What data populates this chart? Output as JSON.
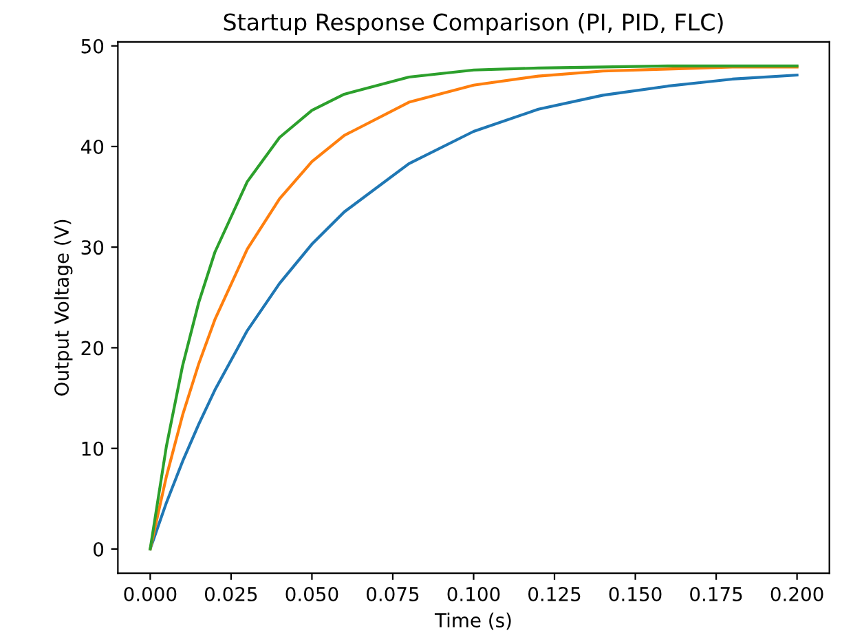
{
  "chart_data": {
    "type": "line",
    "title": "Startup Response Comparison (PI, PID, FLC)",
    "xlabel": "Time (s)",
    "ylabel": "Output Voltage (V)",
    "x": [
      0,
      0.005,
      0.01,
      0.015,
      0.02,
      0.03,
      0.04,
      0.05,
      0.06,
      0.08,
      0.1,
      0.12,
      0.14,
      0.16,
      0.18,
      0.2
    ],
    "series": [
      {
        "color": "#1f77b4",
        "values": [
          0,
          4.6,
          8.7,
          12.4,
          15.8,
          21.7,
          26.4,
          30.3,
          33.5,
          38.3,
          41.5,
          43.7,
          45.1,
          46.0,
          46.7,
          47.1
        ]
      },
      {
        "color": "#ff7f0e",
        "values": [
          0,
          7.2,
          13.3,
          18.4,
          22.8,
          29.8,
          34.8,
          38.5,
          41.1,
          44.4,
          46.1,
          47.0,
          47.5,
          47.7,
          47.9,
          47.9
        ]
      },
      {
        "color": "#2ca02c",
        "values": [
          0,
          10.2,
          18.2,
          24.5,
          29.5,
          36.5,
          40.9,
          43.6,
          45.2,
          46.9,
          47.6,
          47.8,
          47.9,
          48.0,
          48.0,
          48.0
        ]
      }
    ],
    "xlim": [
      -0.01,
      0.21
    ],
    "ylim": [
      -2.4,
      50.4
    ],
    "xticks": [
      {
        "value": 0,
        "label": "0.000"
      },
      {
        "value": 0.025,
        "label": "0.025"
      },
      {
        "value": 0.05,
        "label": "0.050"
      },
      {
        "value": 0.075,
        "label": "0.075"
      },
      {
        "value": 0.1,
        "label": "0.100"
      },
      {
        "value": 0.125,
        "label": "0.125"
      },
      {
        "value": 0.15,
        "label": "0.150"
      },
      {
        "value": 0.175,
        "label": "0.175"
      },
      {
        "value": 0.2,
        "label": "0.200"
      }
    ],
    "yticks": [
      0,
      10,
      20,
      30,
      40,
      50
    ],
    "grid": false,
    "legend": false
  }
}
